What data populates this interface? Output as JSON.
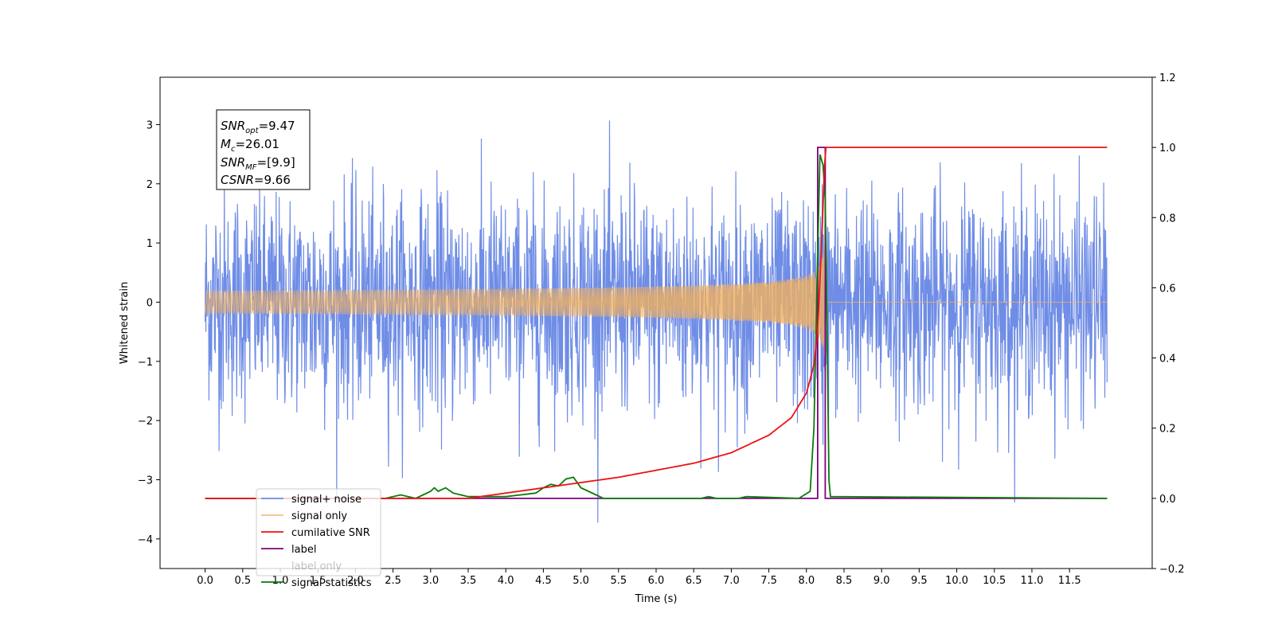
{
  "chart_data": {
    "type": "line",
    "xlabel": "Time (s)",
    "ylabel": "Whitened strain",
    "xlim": [
      -0.6,
      12.6
    ],
    "ylim_left": [
      -4.5,
      3.8
    ],
    "ylim_right": [
      -0.2,
      1.2
    ],
    "x_ticks": [
      "0.0",
      "0.5",
      "1.0",
      "1.5",
      "2.0",
      "2.5",
      "3.0",
      "3.5",
      "4.0",
      "4.5",
      "5.0",
      "5.5",
      "6.0",
      "6.5",
      "7.0",
      "7.5",
      "8.0",
      "8.5",
      "9.0",
      "9.5",
      "10.0",
      "10.5",
      "11.0",
      "11.5"
    ],
    "y_ticks_left": [
      "3",
      "2",
      "1",
      "0",
      "−1",
      "−2",
      "−3",
      "−4"
    ],
    "y_ticks_right": [
      "1.2",
      "1.0",
      "0.8",
      "0.6",
      "0.4",
      "0.2",
      "0.0",
      "−0.2"
    ],
    "annotation": {
      "snr_opt": "=9.47",
      "mc": "=26.01",
      "snr_mf": "=[9.9]",
      "csnr": "=9.66"
    },
    "legend": {
      "placement": "lower-left",
      "entries": [
        "signal+ noise",
        "signal only",
        "cumilative SNR",
        "label",
        "label only",
        "signal statistics"
      ]
    },
    "colors": {
      "noise": "#6f8de6",
      "signal": "#f0b060",
      "cumulative": "#ee1111",
      "label": "#800080",
      "stats": "#0a7a0a"
    },
    "series": [
      {
        "name": "signal+ noise",
        "axis": "left",
        "x_range": [
          0,
          12
        ],
        "amplitude_range": [
          -4.1,
          3.4
        ],
        "axis_ref": "left"
      },
      {
        "name": "signal only",
        "axis": "left",
        "x_range": [
          0,
          12
        ],
        "peak_amplitude": 1.3,
        "merger_time": 8.25
      },
      {
        "name": "cumilative SNR",
        "axis": "right",
        "x": [
          0,
          3.5,
          4.5,
          5.5,
          6.5,
          7.0,
          7.5,
          7.8,
          8.0,
          8.1,
          8.15,
          8.2,
          8.25,
          8.3,
          12
        ],
        "y": [
          0,
          0,
          0.03,
          0.06,
          0.1,
          0.13,
          0.18,
          0.23,
          0.3,
          0.38,
          0.48,
          0.72,
          1.0,
          1.0,
          1.0
        ]
      },
      {
        "name": "label",
        "axis": "right",
        "x": [
          0,
          8.15,
          8.15,
          8.25,
          8.25,
          12
        ],
        "y": [
          0,
          0,
          1.0,
          1.0,
          0,
          0
        ]
      },
      {
        "name": "signal statistics",
        "axis": "right",
        "x": [
          0,
          2.4,
          2.6,
          2.8,
          2.9,
          3.0,
          3.05,
          3.1,
          3.2,
          3.3,
          3.4,
          3.5,
          3.6,
          4.0,
          4.2,
          4.4,
          4.5,
          4.6,
          4.7,
          4.8,
          4.9,
          5.0,
          5.1,
          5.2,
          5.3,
          5.5,
          6.6,
          6.7,
          6.8,
          7.1,
          7.2,
          7.9,
          8.05,
          8.1,
          8.15,
          8.18,
          8.22,
          8.25,
          8.28,
          8.3,
          8.32,
          12
        ],
        "y": [
          0,
          0,
          0.01,
          0.0,
          0.01,
          0.02,
          0.03,
          0.02,
          0.03,
          0.015,
          0.01,
          0.005,
          0.005,
          0.005,
          0.01,
          0.015,
          0.03,
          0.04,
          0.035,
          0.055,
          0.06,
          0.03,
          0.02,
          0.01,
          0.0,
          0.0,
          0.0,
          0.005,
          0.0,
          0.0,
          0.005,
          0.0,
          0.02,
          0.2,
          0.7,
          0.98,
          0.95,
          0.85,
          0.4,
          0.05,
          0.005,
          0
        ]
      }
    ]
  }
}
